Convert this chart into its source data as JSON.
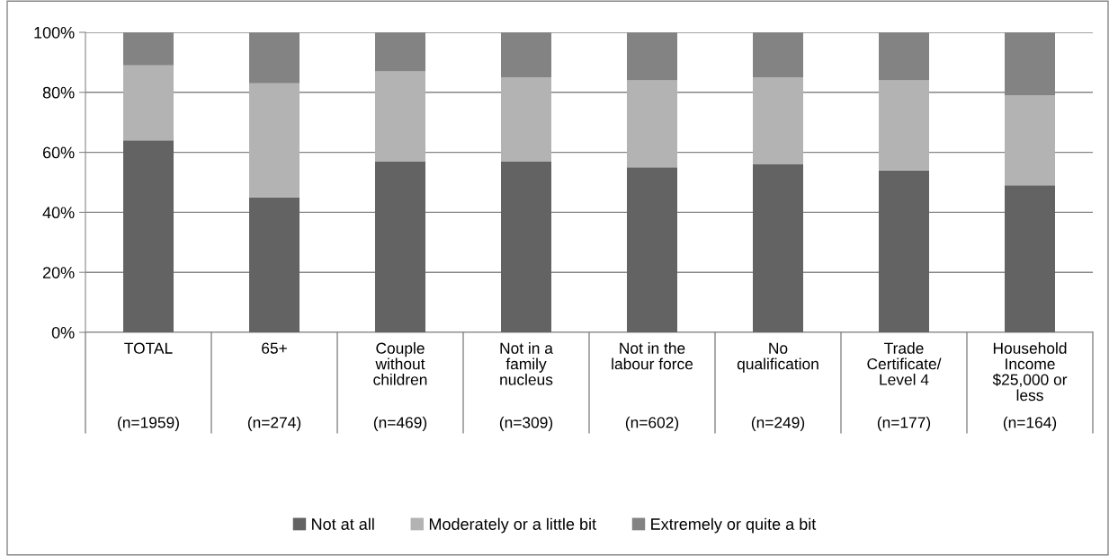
{
  "chart_data": {
    "type": "bar",
    "stacked": true,
    "categories": [
      "TOTAL\n(n=1959)",
      "65+\n(n=274)",
      "Couple\nwithout\nchildren\n(n=469)",
      "Not in a\nfamily\nnucleus\n(n=309)",
      "Not in the\nlabour force\n(n=602)",
      "No\nqualification\n(n=249)",
      "Trade\nCertificate/\nLevel 4\n(n=177)",
      "Household\nIncome\n$25,000 or\nless\n(n=164)"
    ],
    "series": [
      {
        "name": "Not at all",
        "color": "#636363",
        "values": [
          64,
          45,
          57,
          57,
          55,
          56,
          54,
          49
        ]
      },
      {
        "name": "Moderately or a little bit",
        "color": "#b3b3b3",
        "values": [
          25,
          38,
          30,
          28,
          29,
          29,
          30,
          30
        ]
      },
      {
        "name": "Extremely or quite a bit",
        "color": "#838383",
        "values": [
          11,
          17,
          13,
          15,
          16,
          15,
          16,
          21
        ]
      }
    ],
    "ylim": [
      0,
      100
    ],
    "yticks": [
      {
        "value": 0,
        "label": "0%"
      },
      {
        "value": 20,
        "label": "20%"
      },
      {
        "value": 40,
        "label": "40%"
      },
      {
        "value": 60,
        "label": "60%"
      },
      {
        "value": 80,
        "label": "80%"
      },
      {
        "value": 100,
        "label": "100%"
      }
    ],
    "grid": "y",
    "legend": "bottom"
  }
}
